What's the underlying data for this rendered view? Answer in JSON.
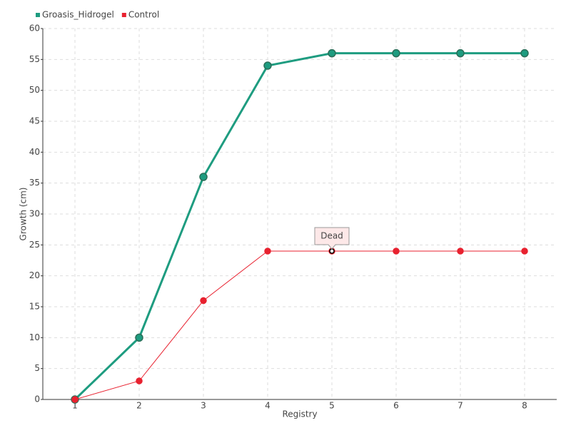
{
  "chart_data": {
    "type": "line",
    "x_label": "Registry",
    "y_label": "Growth (cm)",
    "categories": [
      "1",
      "2",
      "3",
      "4",
      "5",
      "6",
      "7",
      "8"
    ],
    "series": [
      {
        "name": "Groasis_Hidrogel",
        "color": "#1e9c80",
        "values": [
          0,
          10,
          36,
          54,
          56,
          56,
          56,
          56
        ]
      },
      {
        "name": "Control",
        "color": "#e8212f",
        "values": [
          0,
          3,
          16,
          24,
          24,
          24,
          24,
          24
        ]
      }
    ],
    "ylim": [
      0,
      60
    ],
    "yticks": [
      0,
      5,
      10,
      15,
      20,
      25,
      30,
      35,
      40,
      45,
      50,
      55,
      60
    ],
    "grid": true,
    "legend": "top-left",
    "annotations": [
      {
        "label": "Dead",
        "series": "Control",
        "x": "5"
      }
    ]
  }
}
